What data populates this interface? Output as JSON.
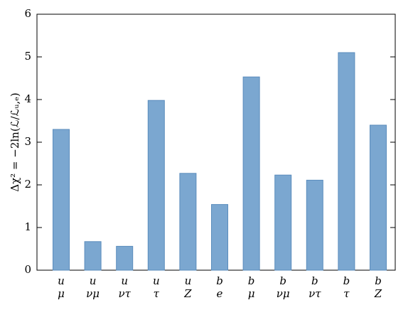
{
  "chart_data": {
    "type": "bar",
    "ylabel": "Δχ² = −2ln(ℒ/ℒᵤ,ₑ)",
    "categories": [
      [
        "u",
        "μ"
      ],
      [
        "u",
        "νμ"
      ],
      [
        "u",
        "ντ"
      ],
      [
        "u",
        "τ"
      ],
      [
        "u",
        "Z"
      ],
      [
        "b",
        "e"
      ],
      [
        "b",
        "μ"
      ],
      [
        "b",
        "νμ"
      ],
      [
        "b",
        "ντ"
      ],
      [
        "b",
        "τ"
      ],
      [
        "b",
        "Z"
      ]
    ],
    "values": [
      3.3,
      0.67,
      0.56,
      3.98,
      2.27,
      1.54,
      4.53,
      2.23,
      2.11,
      5.1,
      3.4
    ],
    "color": "#7ba7d0",
    "ylim": [
      0,
      6
    ],
    "yticks": [
      0,
      1,
      2,
      3,
      4,
      5,
      6
    ],
    "grid": false
  }
}
